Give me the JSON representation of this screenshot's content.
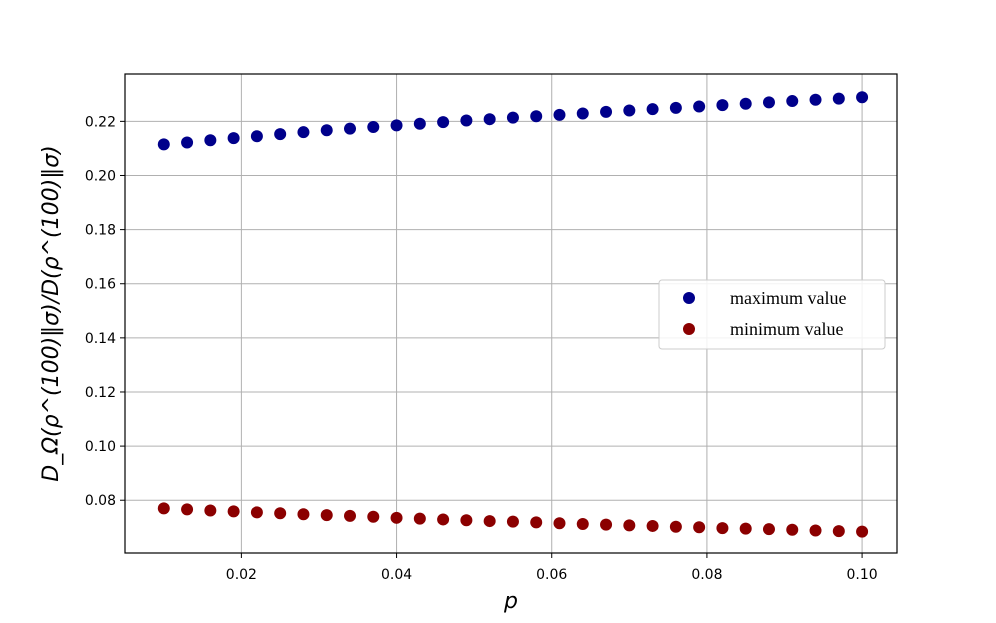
{
  "chart_data": {
    "type": "scatter",
    "xlabel": "p",
    "ylabel": "D_Ω(ρ^(100)‖σ)/D(ρ^(100)‖σ)",
    "xlim": [
      0.005,
      0.1045
    ],
    "ylim": [
      0.0605,
      0.2375
    ],
    "xticks": [
      0.02,
      0.04,
      0.06,
      0.08,
      0.1
    ],
    "xtick_labels": [
      "0.02",
      "0.04",
      "0.06",
      "0.08",
      "0.10"
    ],
    "yticks": [
      0.08,
      0.1,
      0.12,
      0.14,
      0.16,
      0.18,
      0.2,
      0.22
    ],
    "ytick_labels": [
      "0.08",
      "0.10",
      "0.12",
      "0.14",
      "0.16",
      "0.18",
      "0.20",
      "0.22"
    ],
    "grid": true,
    "legend_position": "center-right",
    "x": [
      0.01,
      0.013,
      0.016,
      0.019,
      0.022,
      0.025,
      0.028,
      0.031,
      0.034,
      0.037,
      0.04,
      0.043,
      0.046,
      0.049,
      0.052,
      0.055,
      0.058,
      0.061,
      0.064,
      0.067,
      0.07,
      0.073,
      0.076,
      0.079,
      0.082,
      0.085,
      0.088,
      0.091,
      0.094,
      0.097,
      0.1
    ],
    "series": [
      {
        "name": "maximum value",
        "color": "#00008b",
        "values": [
          0.2115,
          0.2122,
          0.213,
          0.2138,
          0.2145,
          0.2153,
          0.216,
          0.2167,
          0.2173,
          0.2179,
          0.2185,
          0.2191,
          0.2197,
          0.2203,
          0.2208,
          0.2214,
          0.2219,
          0.2224,
          0.2229,
          0.2235,
          0.224,
          0.2245,
          0.225,
          0.2255,
          0.226,
          0.2265,
          0.227,
          0.2275,
          0.228,
          0.2284,
          0.2289
        ]
      },
      {
        "name": "minimum value",
        "color": "#8b0000",
        "values": [
          0.077,
          0.0766,
          0.0762,
          0.0759,
          0.0755,
          0.0752,
          0.0748,
          0.0745,
          0.0742,
          0.0739,
          0.0735,
          0.0732,
          0.0729,
          0.0726,
          0.0723,
          0.0721,
          0.0718,
          0.0715,
          0.0712,
          0.071,
          0.0707,
          0.0705,
          0.0702,
          0.07,
          0.0697,
          0.0695,
          0.0693,
          0.0691,
          0.0688,
          0.0686,
          0.0684
        ]
      }
    ]
  }
}
